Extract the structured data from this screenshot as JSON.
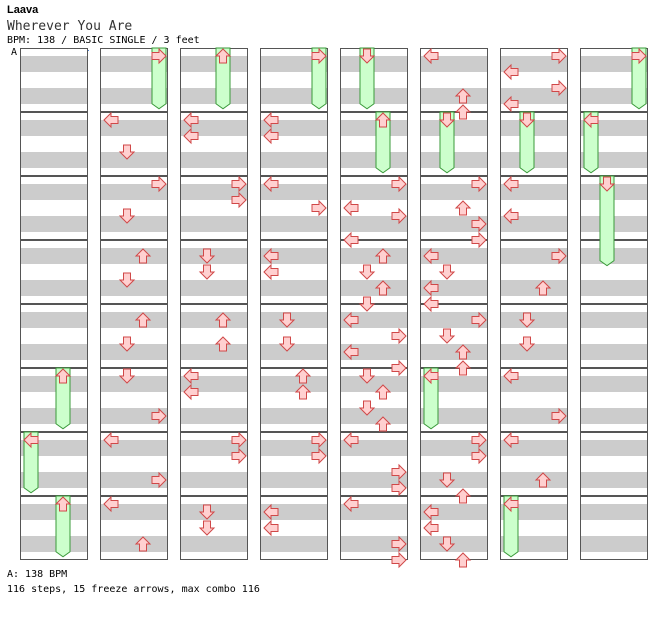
{
  "song": {
    "artist": "Laava",
    "title": "Wherever You Are",
    "meta": "BPM: 138 / BASIC SINGLE / 3 feet",
    "bpm_marker": "A"
  },
  "footer": {
    "bpm_line": "A: 138 BPM",
    "summary": "116 steps, 15 freeze arrows, max combo 116"
  },
  "colors": {
    "stripe": "#cccccc",
    "arrow_fill": "#ffd0d0",
    "arrow_stroke": "#d04848",
    "freeze_fill": "#ccffcc",
    "freeze_stroke": "#3a9a3a",
    "bpm_line": "#4a7fd4"
  },
  "chart_data": {
    "type": "step-chart",
    "columns": 8,
    "measures_per_column": 8,
    "freezes": [
      {
        "col": 0,
        "measure": 5,
        "dir": "up",
        "from": 0,
        "to": 0.95
      },
      {
        "col": 0,
        "measure": 6,
        "dir": "left",
        "from": 0,
        "to": 0.95
      },
      {
        "col": 0,
        "measure": 7,
        "dir": "up",
        "from": 0,
        "to": 0.95
      },
      {
        "col": 1,
        "measure": 0,
        "dir": "right",
        "from": 0,
        "to": 0.95
      },
      {
        "col": 2,
        "measure": 0,
        "dir": "up",
        "from": 0,
        "to": 0.95
      },
      {
        "col": 3,
        "measure": 0,
        "dir": "right",
        "from": 0,
        "to": 0.95
      },
      {
        "col": 4,
        "measure": 0,
        "dir": "down",
        "from": 0,
        "to": 0.95
      },
      {
        "col": 4,
        "measure": 1,
        "dir": "up",
        "from": 0,
        "to": 0.95
      },
      {
        "col": 5,
        "measure": 1,
        "dir": "down",
        "from": 0,
        "to": 0.95
      },
      {
        "col": 5,
        "measure": 5,
        "dir": "left",
        "from": 0,
        "to": 0.95
      },
      {
        "col": 6,
        "measure": 1,
        "dir": "down",
        "from": 0,
        "to": 0.95
      },
      {
        "col": 6,
        "measure": 7,
        "dir": "left",
        "from": 0,
        "to": 0.95
      },
      {
        "col": 7,
        "measure": 0,
        "dir": "right",
        "from": 0,
        "to": 0.95
      },
      {
        "col": 7,
        "measure": 1,
        "dir": "left",
        "from": 0,
        "to": 0.95
      },
      {
        "col": 7,
        "measure": 2,
        "dir": "down",
        "from": 0,
        "to": 1.4
      }
    ],
    "arrows": [
      {
        "col": 1,
        "measure": 1,
        "dir": "left",
        "beat": 0
      },
      {
        "col": 1,
        "measure": 1,
        "dir": "down",
        "beat": 2
      },
      {
        "col": 1,
        "measure": 2,
        "dir": "right",
        "beat": 0
      },
      {
        "col": 1,
        "measure": 2,
        "dir": "down",
        "beat": 2
      },
      {
        "col": 1,
        "measure": 3,
        "dir": "up",
        "beat": 0.5
      },
      {
        "col": 1,
        "measure": 3,
        "dir": "down",
        "beat": 2
      },
      {
        "col": 1,
        "measure": 4,
        "dir": "up",
        "beat": 0.5
      },
      {
        "col": 1,
        "measure": 4,
        "dir": "down",
        "beat": 2
      },
      {
        "col": 1,
        "measure": 5,
        "dir": "down",
        "beat": 0
      },
      {
        "col": 1,
        "measure": 5,
        "dir": "right",
        "beat": 2.5
      },
      {
        "col": 1,
        "measure": 6,
        "dir": "left",
        "beat": 0
      },
      {
        "col": 1,
        "measure": 6,
        "dir": "right",
        "beat": 2.5
      },
      {
        "col": 1,
        "measure": 7,
        "dir": "left",
        "beat": 0
      },
      {
        "col": 1,
        "measure": 7,
        "dir": "up",
        "beat": 2.5
      },
      {
        "col": 2,
        "measure": 1,
        "dir": "left",
        "beat": 0
      },
      {
        "col": 2,
        "measure": 1,
        "dir": "left",
        "beat": 1
      },
      {
        "col": 2,
        "measure": 2,
        "dir": "right",
        "beat": 0
      },
      {
        "col": 2,
        "measure": 2,
        "dir": "right",
        "beat": 1
      },
      {
        "col": 2,
        "measure": 3,
        "dir": "down",
        "beat": 0.5
      },
      {
        "col": 2,
        "measure": 3,
        "dir": "down",
        "beat": 1.5
      },
      {
        "col": 2,
        "measure": 4,
        "dir": "up",
        "beat": 0.5
      },
      {
        "col": 2,
        "measure": 4,
        "dir": "up",
        "beat": 2
      },
      {
        "col": 2,
        "measure": 5,
        "dir": "left",
        "beat": 0
      },
      {
        "col": 2,
        "measure": 5,
        "dir": "left",
        "beat": 1
      },
      {
        "col": 2,
        "measure": 6,
        "dir": "right",
        "beat": 0
      },
      {
        "col": 2,
        "measure": 6,
        "dir": "right",
        "beat": 1
      },
      {
        "col": 2,
        "measure": 7,
        "dir": "down",
        "beat": 0.5
      },
      {
        "col": 2,
        "measure": 7,
        "dir": "down",
        "beat": 1.5
      },
      {
        "col": 3,
        "measure": 1,
        "dir": "left",
        "beat": 0
      },
      {
        "col": 3,
        "measure": 1,
        "dir": "left",
        "beat": 1
      },
      {
        "col": 3,
        "measure": 2,
        "dir": "left",
        "beat": 0
      },
      {
        "col": 3,
        "measure": 2,
        "dir": "right",
        "beat": 1.5
      },
      {
        "col": 3,
        "measure": 3,
        "dir": "left",
        "beat": 0.5
      },
      {
        "col": 3,
        "measure": 3,
        "dir": "left",
        "beat": 1.5
      },
      {
        "col": 3,
        "measure": 4,
        "dir": "down",
        "beat": 0.5
      },
      {
        "col": 3,
        "measure": 4,
        "dir": "down",
        "beat": 2
      },
      {
        "col": 3,
        "measure": 5,
        "dir": "up",
        "beat": 0
      },
      {
        "col": 3,
        "measure": 5,
        "dir": "up",
        "beat": 1
      },
      {
        "col": 3,
        "measure": 6,
        "dir": "right",
        "beat": 0
      },
      {
        "col": 3,
        "measure": 6,
        "dir": "right",
        "beat": 1
      },
      {
        "col": 3,
        "measure": 7,
        "dir": "left",
        "beat": 0.5
      },
      {
        "col": 3,
        "measure": 7,
        "dir": "left",
        "beat": 1.5
      },
      {
        "col": 4,
        "measure": 2,
        "dir": "right",
        "beat": 0
      },
      {
        "col": 4,
        "measure": 2,
        "dir": "left",
        "beat": 1.5
      },
      {
        "col": 4,
        "measure": 2,
        "dir": "right",
        "beat": 2
      },
      {
        "col": 4,
        "measure": 2,
        "dir": "left",
        "beat": 3.5
      },
      {
        "col": 4,
        "measure": 3,
        "dir": "up",
        "beat": 0.5
      },
      {
        "col": 4,
        "measure": 3,
        "dir": "down",
        "beat": 1.5
      },
      {
        "col": 4,
        "measure": 3,
        "dir": "up",
        "beat": 2.5
      },
      {
        "col": 4,
        "measure": 3,
        "dir": "down",
        "beat": 3.5
      },
      {
        "col": 4,
        "measure": 4,
        "dir": "left",
        "beat": 0.5
      },
      {
        "col": 4,
        "measure": 4,
        "dir": "right",
        "beat": 1.5
      },
      {
        "col": 4,
        "measure": 4,
        "dir": "left",
        "beat": 2.5
      },
      {
        "col": 4,
        "measure": 4,
        "dir": "right",
        "beat": 3.5
      },
      {
        "col": 4,
        "measure": 5,
        "dir": "down",
        "beat": 0
      },
      {
        "col": 4,
        "measure": 5,
        "dir": "up",
        "beat": 1
      },
      {
        "col": 4,
        "measure": 5,
        "dir": "down",
        "beat": 2
      },
      {
        "col": 4,
        "measure": 5,
        "dir": "up",
        "beat": 3
      },
      {
        "col": 4,
        "measure": 6,
        "dir": "left",
        "beat": 0
      },
      {
        "col": 4,
        "measure": 6,
        "dir": "right",
        "beat": 2
      },
      {
        "col": 4,
        "measure": 6,
        "dir": "right",
        "beat": 3
      },
      {
        "col": 4,
        "measure": 7,
        "dir": "left",
        "beat": 0
      },
      {
        "col": 4,
        "measure": 7,
        "dir": "right",
        "beat": 2.5
      },
      {
        "col": 4,
        "measure": 7,
        "dir": "right",
        "beat": 3.5
      },
      {
        "col": 5,
        "measure": 0,
        "dir": "left",
        "beat": 0
      },
      {
        "col": 5,
        "measure": 0,
        "dir": "up",
        "beat": 2.5
      },
      {
        "col": 5,
        "measure": 0,
        "dir": "up",
        "beat": 3.5
      },
      {
        "col": 5,
        "measure": 2,
        "dir": "right",
        "beat": 0
      },
      {
        "col": 5,
        "measure": 2,
        "dir": "up",
        "beat": 1.5
      },
      {
        "col": 5,
        "measure": 2,
        "dir": "right",
        "beat": 2.5
      },
      {
        "col": 5,
        "measure": 2,
        "dir": "right",
        "beat": 3.5
      },
      {
        "col": 5,
        "measure": 3,
        "dir": "left",
        "beat": 0.5
      },
      {
        "col": 5,
        "measure": 3,
        "dir": "down",
        "beat": 1.5
      },
      {
        "col": 5,
        "measure": 3,
        "dir": "left",
        "beat": 2.5
      },
      {
        "col": 5,
        "measure": 3,
        "dir": "left",
        "beat": 3.5
      },
      {
        "col": 5,
        "measure": 4,
        "dir": "right",
        "beat": 0.5
      },
      {
        "col": 5,
        "measure": 4,
        "dir": "down",
        "beat": 1.5
      },
      {
        "col": 5,
        "measure": 4,
        "dir": "up",
        "beat": 2.5
      },
      {
        "col": 5,
        "measure": 4,
        "dir": "up",
        "beat": 3.5
      },
      {
        "col": 5,
        "measure": 6,
        "dir": "right",
        "beat": 0
      },
      {
        "col": 5,
        "measure": 6,
        "dir": "right",
        "beat": 1
      },
      {
        "col": 5,
        "measure": 6,
        "dir": "down",
        "beat": 2.5
      },
      {
        "col": 5,
        "measure": 6,
        "dir": "up",
        "beat": 3.5
      },
      {
        "col": 5,
        "measure": 7,
        "dir": "left",
        "beat": 0.5
      },
      {
        "col": 5,
        "measure": 7,
        "dir": "left",
        "beat": 1.5
      },
      {
        "col": 5,
        "measure": 7,
        "dir": "down",
        "beat": 2.5
      },
      {
        "col": 5,
        "measure": 7,
        "dir": "up",
        "beat": 3.5
      },
      {
        "col": 6,
        "measure": 0,
        "dir": "right",
        "beat": 0
      },
      {
        "col": 6,
        "measure": 0,
        "dir": "left",
        "beat": 1
      },
      {
        "col": 6,
        "measure": 0,
        "dir": "right",
        "beat": 2
      },
      {
        "col": 6,
        "measure": 0,
        "dir": "left",
        "beat": 3
      },
      {
        "col": 6,
        "measure": 2,
        "dir": "left",
        "beat": 0
      },
      {
        "col": 6,
        "measure": 2,
        "dir": "left",
        "beat": 2
      },
      {
        "col": 6,
        "measure": 3,
        "dir": "right",
        "beat": 0.5
      },
      {
        "col": 6,
        "measure": 3,
        "dir": "up",
        "beat": 2.5
      },
      {
        "col": 6,
        "measure": 4,
        "dir": "down",
        "beat": 0.5
      },
      {
        "col": 6,
        "measure": 4,
        "dir": "down",
        "beat": 2
      },
      {
        "col": 6,
        "measure": 5,
        "dir": "left",
        "beat": 0
      },
      {
        "col": 6,
        "measure": 5,
        "dir": "right",
        "beat": 2.5
      },
      {
        "col": 6,
        "measure": 6,
        "dir": "left",
        "beat": 0
      },
      {
        "col": 6,
        "measure": 6,
        "dir": "up",
        "beat": 2.5
      }
    ]
  }
}
